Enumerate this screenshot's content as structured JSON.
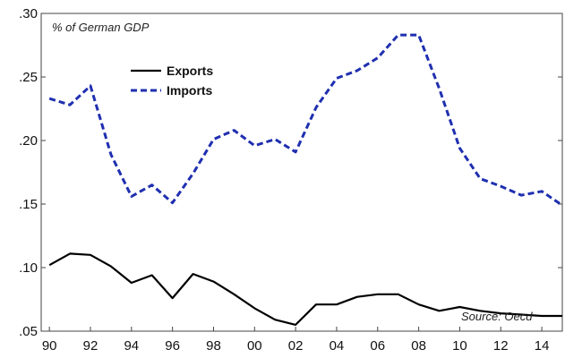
{
  "chart_data": {
    "type": "line",
    "annotation": "% of German GDP",
    "source": "Source: Oecd",
    "x_ticks": [
      1990,
      1992,
      1994,
      1996,
      1998,
      2000,
      2002,
      2004,
      2006,
      2008,
      2010,
      2012,
      2014
    ],
    "x_tick_labels": [
      "90",
      "92",
      "94",
      "96",
      "98",
      "00",
      "02",
      "04",
      "06",
      "08",
      "10",
      "12",
      "14"
    ],
    "xlim": [
      1989.6,
      2015
    ],
    "ylim": [
      0.05,
      0.3
    ],
    "y_ticks": [
      0.05,
      0.1,
      0.15,
      0.2,
      0.25,
      0.3
    ],
    "y_tick_labels": [
      ".05",
      ".10",
      ".15",
      ".20",
      ".25",
      ".30"
    ],
    "grid": false,
    "legend_placement": "top-left",
    "series": [
      {
        "name": "Exports",
        "color": "#000000",
        "style": "solid",
        "x": [
          1990,
          1991,
          1992,
          1993,
          1994,
          1995,
          1996,
          1997,
          1998,
          1999,
          2000,
          2001,
          2002,
          2003,
          2004,
          2005,
          2006,
          2007,
          2008,
          2009,
          2010,
          2011,
          2012,
          2013,
          2014,
          2015
        ],
        "values": [
          0.102,
          0.111,
          0.11,
          0.101,
          0.088,
          0.094,
          0.076,
          0.095,
          0.089,
          0.079,
          0.068,
          0.059,
          0.055,
          0.071,
          0.071,
          0.077,
          0.079,
          0.079,
          0.071,
          0.066,
          0.069,
          0.066,
          0.064,
          0.063,
          0.062,
          0.062
        ]
      },
      {
        "name": "Imports",
        "color": "#1f2fb0",
        "style": "dashed",
        "x": [
          1990,
          1991,
          1992,
          1993,
          1994,
          1995,
          1996,
          1997,
          1998,
          1999,
          2000,
          2001,
          2002,
          2003,
          2004,
          2005,
          2006,
          2007,
          2008,
          2009,
          2010,
          2011,
          2012,
          2013,
          2014,
          2015
        ],
        "values": [
          0.233,
          0.228,
          0.243,
          0.189,
          0.156,
          0.165,
          0.151,
          0.174,
          0.201,
          0.208,
          0.196,
          0.201,
          0.191,
          0.226,
          0.249,
          0.255,
          0.265,
          0.283,
          0.283,
          0.241,
          0.194,
          0.17,
          0.164,
          0.157,
          0.16,
          0.149
        ]
      }
    ]
  }
}
